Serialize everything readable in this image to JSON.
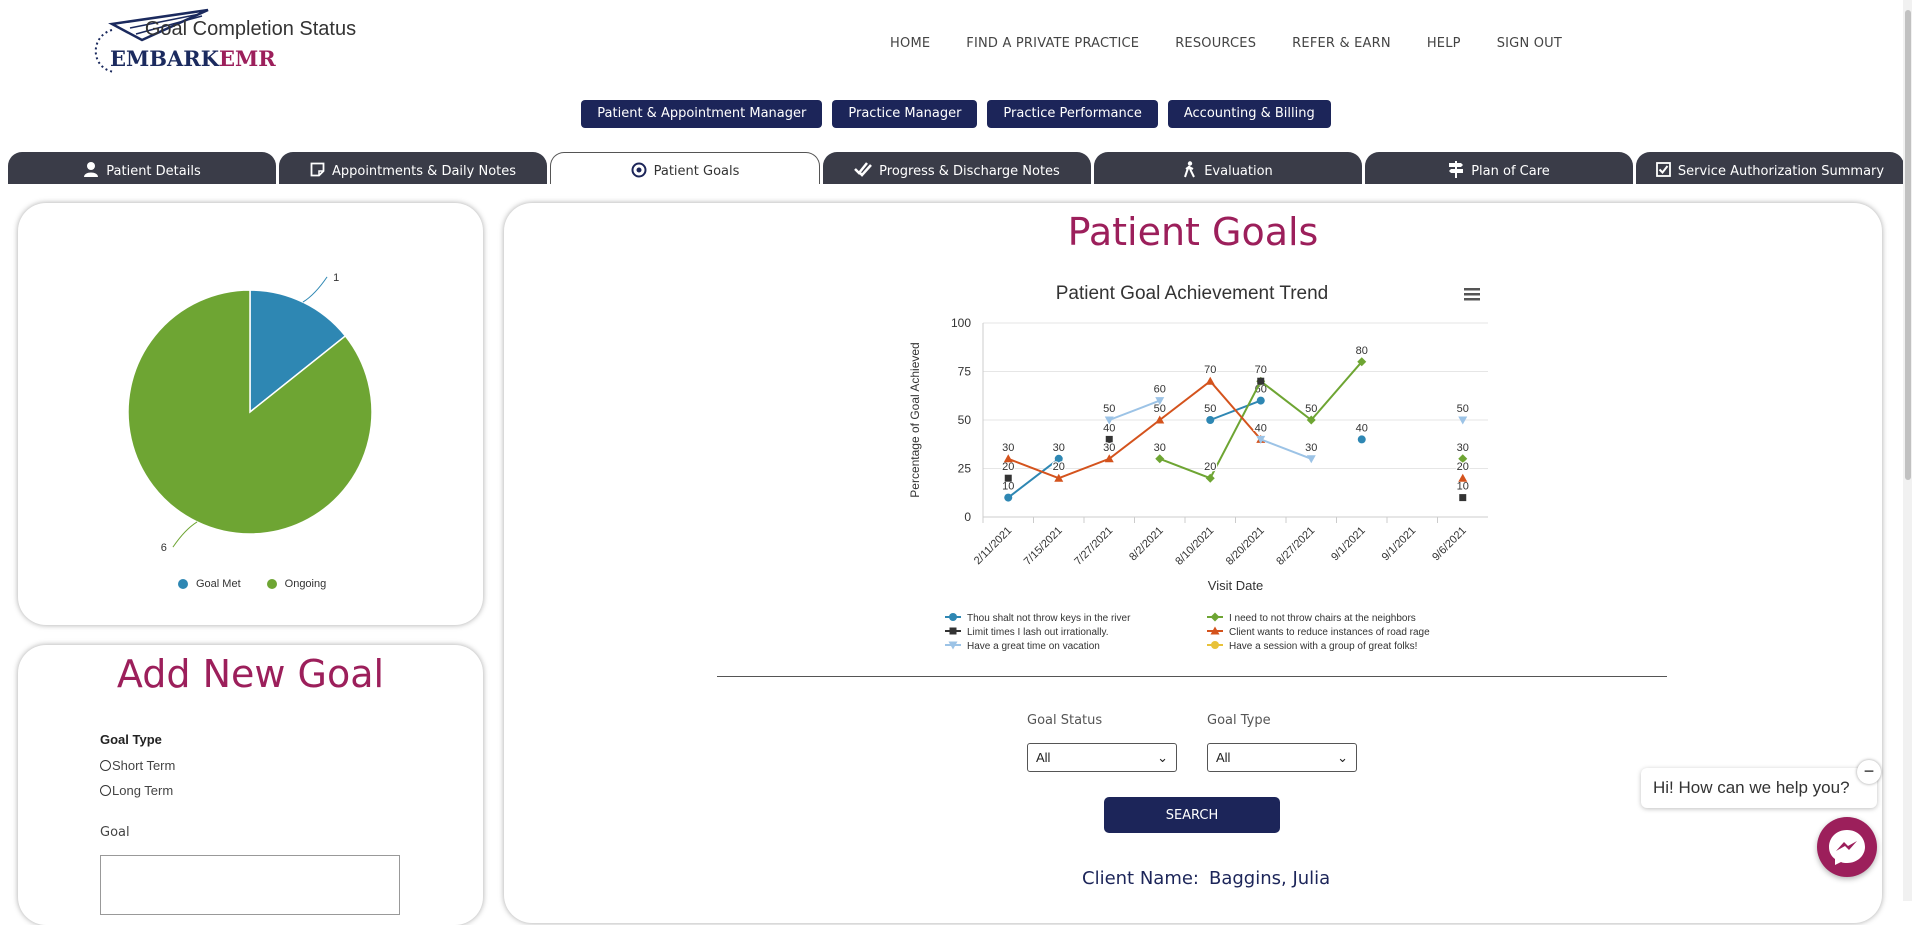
{
  "brand": {
    "part1": "EMBARK",
    "part2": "EMR"
  },
  "nav": [
    "HOME",
    "FIND A PRIVATE PRACTICE",
    "RESOURCES",
    "REFER & EARN",
    "HELP",
    "SIGN OUT"
  ],
  "modules": [
    "Patient & Appointment Manager",
    "Practice Manager",
    "Practice Performance",
    "Accounting & Billing"
  ],
  "tabs": [
    {
      "label": "Patient Details",
      "icon": "person-icon"
    },
    {
      "label": "Appointments & Daily Notes",
      "icon": "note-icon"
    },
    {
      "label": "Patient Goals",
      "icon": "target-icon"
    },
    {
      "label": "Progress & Discharge Notes",
      "icon": "double-check-icon"
    },
    {
      "label": "Evaluation",
      "icon": "walking-person-icon"
    },
    {
      "label": "Plan of Care",
      "icon": "signpost-icon"
    },
    {
      "label": "Service Authorization Summary",
      "icon": "checkbox-icon"
    }
  ],
  "active_tab": "Patient Goals",
  "pie": {
    "title": "Goal Completion Status",
    "slices": [
      {
        "label": "Goal Met",
        "value": 1,
        "color": "#2e87b3"
      },
      {
        "label": "Ongoing",
        "value": 6,
        "color": "#6ea533"
      }
    ]
  },
  "add_goal": {
    "title": "Add New Goal",
    "goal_type_label": "Goal Type",
    "options": [
      "Short Term",
      "Long Term"
    ],
    "goal_label": "Goal"
  },
  "main": {
    "title": "Patient Goals",
    "filters": {
      "status_label": "Goal Status",
      "status_value": "All",
      "type_label": "Goal Type",
      "type_value": "All"
    },
    "search_label": "SEARCH",
    "client_label": "Client Name:",
    "client_name": "Baggins, Julia"
  },
  "chat": {
    "greeting": "Hi! How can we help you?",
    "close": "−"
  },
  "chart_data": {
    "type": "line",
    "title": "Patient Goal Achievement Trend",
    "xlabel": "Visit Date",
    "ylabel": "Percentage of Goal Achieved",
    "ylim": [
      0,
      100
    ],
    "yticks": [
      0,
      25,
      50,
      75,
      100
    ],
    "categories": [
      "2/11/2021",
      "7/15/2021",
      "7/27/2021",
      "8/2/2021",
      "8/10/2021",
      "8/20/2021",
      "8/27/2021",
      "9/1/2021",
      "9/1/2021",
      "9/6/2021"
    ],
    "legend_position": "bottom",
    "series": [
      {
        "name": "Thou shalt not throw keys in the river",
        "color": "#2e87b3",
        "marker": "circle",
        "values": [
          10,
          30,
          null,
          null,
          50,
          60,
          null,
          40,
          null,
          null
        ]
      },
      {
        "name": "I need to not throw chairs at the neighbors",
        "color": "#6ea533",
        "marker": "diamond",
        "values": [
          null,
          null,
          null,
          30,
          20,
          70,
          50,
          80,
          null,
          30
        ]
      },
      {
        "name": "Limit times I lash out irrationally.",
        "color": "#333333",
        "marker": "square",
        "values": [
          20,
          null,
          40,
          null,
          null,
          70,
          null,
          null,
          null,
          10
        ]
      },
      {
        "name": "Client wants to reduce instances of road rage",
        "color": "#d4531d",
        "marker": "triangle",
        "values": [
          30,
          20,
          30,
          50,
          70,
          40,
          null,
          null,
          null,
          20
        ]
      },
      {
        "name": "Have a great time on vacation",
        "color": "#9cc3e6",
        "marker": "triangle-down",
        "values": [
          null,
          null,
          50,
          60,
          null,
          40,
          30,
          null,
          null,
          50
        ]
      },
      {
        "name": "Have a session with a group of great folks!",
        "color": "#e8c23a",
        "marker": "circle",
        "values": [
          null,
          null,
          null,
          null,
          null,
          null,
          null,
          null,
          null,
          null
        ]
      }
    ]
  }
}
